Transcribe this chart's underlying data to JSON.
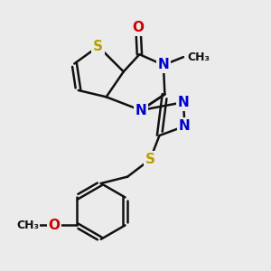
{
  "bg_color": "#ebebeb",
  "atom_colors": {
    "S": "#b8a000",
    "N": "#0000cc",
    "O": "#cc0000",
    "C": "#111111"
  },
  "bond_color": "#111111",
  "bond_width": 1.8,
  "fig_size": [
    3.0,
    3.0
  ],
  "dpi": 100
}
